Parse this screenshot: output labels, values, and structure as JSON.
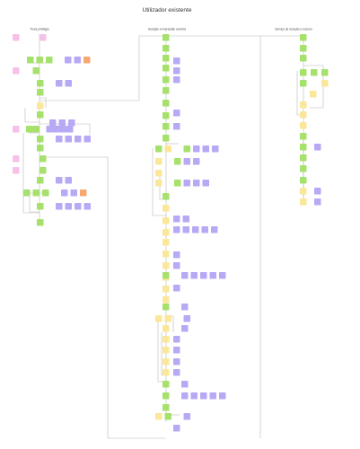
{
  "title": "Utilizador existente",
  "lanes": [
    {
      "label": "Troca privilégio"
    },
    {
      "label": "Geração e impressão eventos"
    },
    {
      "label": "Serviço de receção e recurso"
    }
  ],
  "colors": {
    "green": "#a6e16c",
    "yellow": "#fbe79a",
    "purple": "#b8a9f5",
    "pink": "#f6c1e6",
    "orange": "#f7a870",
    "connector": "#b8b8b8",
    "text": "#333333"
  },
  "legend": {
    "green": "step",
    "yellow": "decision",
    "purple": "data-card",
    "pink": "note",
    "orange": "alert-card"
  }
}
